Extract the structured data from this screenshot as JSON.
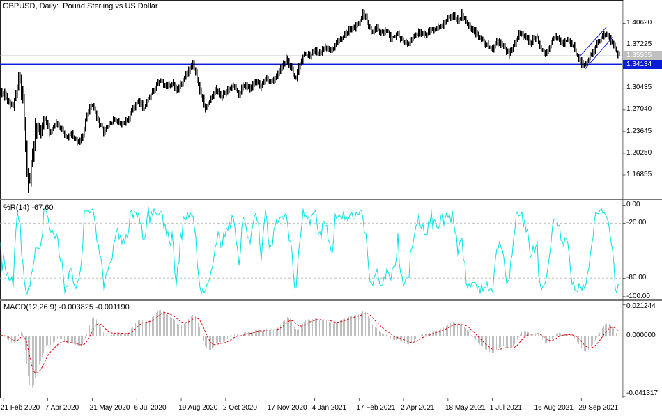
{
  "window": {
    "title": "GBPUSD, Daily:  Pound Sterling vs US Dollar"
  },
  "colors": {
    "background": "#ffffff",
    "candle": "#000000",
    "bid_line": "#c0c0c0",
    "hline_blue": "#0b1cd8",
    "wpr_line": "#00e2e2",
    "macd_hist": "#bfbfbf",
    "macd_signal": "#e00000",
    "level_dash": "#b0b0b0",
    "axis_text": "#000000"
  },
  "chart_data": {
    "type": "candlestick",
    "symbol": "GBPUSD",
    "timeframe": "Daily",
    "description": "Pound Sterling vs US Dollar",
    "x_axis": {
      "labels": [
        "21 Feb 2020",
        "7 Apr 2020",
        "21 May 2020",
        "6 Jul 2020",
        "19 Aug 2020",
        "2 Oct 2020",
        "17 Nov 2020",
        "4 Jan 2021",
        "17 Feb 2021",
        "2 Apr 2021",
        "18 May 2021",
        "1 Jul 2021",
        "16 Aug 2021",
        "29 Sep 2021"
      ]
    },
    "price_axis": {
      "labels": [
        "1.40620",
        "1.37225",
        "1.33830",
        "1.30435",
        "1.27040",
        "1.23645",
        "1.20250",
        "1.16855"
      ],
      "values": [
        1.4062,
        1.37225,
        1.3383,
        1.30435,
        1.2704,
        1.23645,
        1.2025,
        1.16855
      ]
    },
    "price_markers": {
      "bid": {
        "label": "1.35555",
        "value": 1.35555
      },
      "hline": {
        "label": "1.34134",
        "value": 1.34134
      }
    },
    "candles": {
      "count": 445,
      "seed": 1337,
      "prehistory": 40,
      "prehistory_price": 1.298,
      "anchors": [
        [
          0,
          1.298
        ],
        [
          4,
          1.29
        ],
        [
          9,
          1.274
        ],
        [
          13,
          1.323
        ],
        [
          16,
          1.284
        ],
        [
          18,
          1.192
        ],
        [
          20,
          1.15
        ],
        [
          22,
          1.186
        ],
        [
          25,
          1.246
        ],
        [
          28,
          1.235
        ],
        [
          31,
          1.257
        ],
        [
          35,
          1.233
        ],
        [
          39,
          1.248
        ],
        [
          43,
          1.24
        ],
        [
          46,
          1.227
        ],
        [
          50,
          1.233
        ],
        [
          54,
          1.219
        ],
        [
          58,
          1.23
        ],
        [
          61,
          1.265
        ],
        [
          65,
          1.277
        ],
        [
          68,
          1.257
        ],
        [
          73,
          1.235
        ],
        [
          77,
          1.248
        ],
        [
          81,
          1.255
        ],
        [
          86,
          1.246
        ],
        [
          90,
          1.2565
        ],
        [
          94,
          1.2755
        ],
        [
          98,
          1.2815
        ],
        [
          101,
          1.2735
        ],
        [
          105,
          1.29
        ],
        [
          109,
          1.3035
        ],
        [
          113,
          1.3165
        ],
        [
          117,
          1.3045
        ],
        [
          121,
          1.3115
        ],
        [
          124,
          1.301
        ],
        [
          128,
          1.312
        ],
        [
          132,
          1.328
        ],
        [
          136,
          1.3446
        ],
        [
          139,
          1.317
        ],
        [
          142,
          1.29
        ],
        [
          145,
          1.2714
        ],
        [
          149,
          1.29
        ],
        [
          152,
          1.303
        ],
        [
          156,
          1.29
        ],
        [
          160,
          1.299
        ],
        [
          164,
          1.31
        ],
        [
          168,
          1.295
        ],
        [
          172,
          1.312
        ],
        [
          176,
          1.301
        ],
        [
          180,
          1.315
        ],
        [
          184,
          1.306
        ],
        [
          187,
          1.321
        ],
        [
          191,
          1.312
        ],
        [
          195,
          1.325
        ],
        [
          199,
          1.339
        ],
        [
          202,
          1.35
        ],
        [
          205,
          1.334
        ],
        [
          208,
          1.317
        ],
        [
          211,
          1.339
        ],
        [
          215,
          1.361
        ],
        [
          218,
          1.353
        ],
        [
          222,
          1.364
        ],
        [
          225,
          1.356
        ],
        [
          229,
          1.369
        ],
        [
          233,
          1.361
        ],
        [
          237,
          1.375
        ],
        [
          241,
          1.383
        ],
        [
          245,
          1.391
        ],
        [
          249,
          1.397
        ],
        [
          252,
          1.405
        ],
        [
          256,
          1.421
        ],
        [
          259,
          1.408
        ],
        [
          262,
          1.394
        ],
        [
          265,
          1.401
        ],
        [
          269,
          1.388
        ],
        [
          273,
          1.397
        ],
        [
          276,
          1.383
        ],
        [
          280,
          1.391
        ],
        [
          284,
          1.38
        ],
        [
          288,
          1.375
        ],
        [
          292,
          1.386
        ],
        [
          296,
          1.394
        ],
        [
          300,
          1.388
        ],
        [
          304,
          1.399
        ],
        [
          308,
          1.394
        ],
        [
          312,
          1.405
        ],
        [
          315,
          1.412
        ],
        [
          319,
          1.419
        ],
        [
          323,
          1.411
        ],
        [
          326,
          1.419
        ],
        [
          329,
          1.407
        ],
        [
          331,
          1.401
        ],
        [
          335,
          1.391
        ],
        [
          339,
          1.383
        ],
        [
          343,
          1.372
        ],
        [
          347,
          1.364
        ],
        [
          351,
          1.377
        ],
        [
          355,
          1.369
        ],
        [
          359,
          1.356
        ],
        [
          363,
          1.375
        ],
        [
          367,
          1.391
        ],
        [
          371,
          1.383
        ],
        [
          374,
          1.377
        ],
        [
          378,
          1.386
        ],
        [
          382,
          1.367
        ],
        [
          385,
          1.358
        ],
        [
          389,
          1.377
        ],
        [
          393,
          1.386
        ],
        [
          397,
          1.375
        ],
        [
          401,
          1.38
        ],
        [
          405,
          1.367
        ],
        [
          408,
          1.353
        ],
        [
          411,
          1.339
        ],
        [
          414,
          1.347
        ],
        [
          417,
          1.358
        ],
        [
          420,
          1.369
        ],
        [
          423,
          1.38
        ],
        [
          426,
          1.391
        ],
        [
          429,
          1.386
        ],
        [
          432,
          1.377
        ],
        [
          434,
          1.367
        ],
        [
          437,
          1.3556
        ]
      ],
      "wick_lows": [
        [
          20,
          1.1395
        ],
        [
          418,
          1.3365
        ]
      ],
      "wick_highs": [
        [
          138,
          1.3485
        ],
        [
          260,
          1.4285
        ],
        [
          331,
          1.4285
        ]
      ]
    },
    "channel": {
      "color": "#0b1cd8",
      "lines": [
        [
          832.7,
          80,
          870,
          39
        ],
        [
          839.3,
          99.3,
          879.3,
          53.3
        ]
      ]
    },
    "indicators": [
      {
        "name": "WPR",
        "label": "%R(14) -67.60",
        "period": 14,
        "current": -67.6,
        "levels": [
          -20,
          -80
        ],
        "scale_max": 0,
        "scale_min": -100,
        "axis_labels": [
          "0.00",
          "-20.00",
          "-80.00",
          "-100.00"
        ],
        "axis_values": [
          0,
          -20,
          -80,
          -100
        ]
      },
      {
        "name": "MACD",
        "label": "MACD(12,26,9) -0.003825 -0.001190",
        "fast": 12,
        "slow": 26,
        "signal": 9,
        "current_macd": -0.003825,
        "current_signal": -0.00119,
        "axis_labels": [
          "0.021244",
          "0.000000",
          "-0.041317"
        ],
        "axis_values": [
          0.021244,
          0,
          -0.041317
        ]
      }
    ]
  }
}
